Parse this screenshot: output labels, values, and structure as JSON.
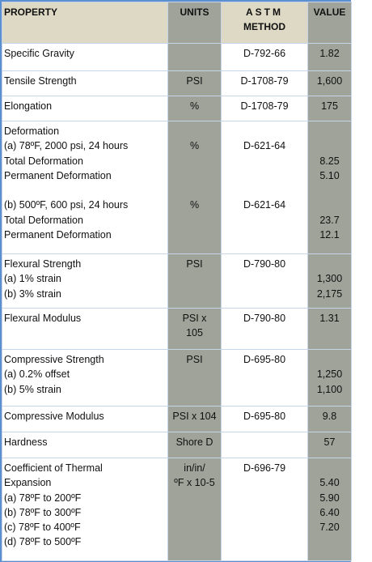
{
  "header": [
    {
      "property": "PROPERTY",
      "units": "UNITS",
      "astm": "ASTM",
      "value": "VALUE"
    },
    {
      "astm": "METHOD"
    }
  ],
  "rows": [
    {
      "groups": [
        [
          {
            "property": "Specific Gravity",
            "astm": "D-792-66",
            "value": "1.82"
          }
        ]
      ]
    },
    {
      "groups": [
        [
          {
            "property": "Tensile Strength",
            "units": "PSI",
            "astm": "D-1708-79",
            "value": "1,600"
          }
        ]
      ]
    },
    {
      "groups": [
        [
          {
            "property": "Elongation",
            "units": "%",
            "astm": "D-1708-79",
            "value": "175"
          }
        ]
      ]
    },
    {
      "groups": [
        [
          {
            "property": "Deformation"
          },
          {
            "property": "(a) 78ºF, 2000 psi, 24 hours",
            "units": "%",
            "astm": "D-621-64"
          },
          {
            "property": "Total Deformation",
            "value": "8.25"
          },
          {
            "property": "Permanent Deformation",
            "value": "5.10"
          }
        ],
        [
          {
            "property": "(b) 500ºF, 600 psi, 24 hours",
            "units": "%",
            "astm": "D-621-64"
          },
          {
            "property": "Total Deformation",
            "value": "23.7"
          },
          {
            "property": "Permanent Deformation",
            "value": "12.1"
          }
        ]
      ]
    },
    {
      "groups": [
        [
          {
            "property": "Flexural Strength",
            "units": "PSI",
            "astm": "D-790-80"
          },
          {
            "property": "(a) 1% strain",
            "value": "1,300"
          },
          {
            "property": "(b) 3% strain",
            "value": "2,175"
          }
        ]
      ]
    },
    {
      "groups": [
        [
          {
            "property": "Flexural Modulus",
            "units": "PSI x",
            "astm": "D-790-80",
            "value": "1.31"
          },
          {
            "units": "105"
          }
        ]
      ]
    },
    {
      "groups": [
        [
          {
            "property": "Compressive Strength",
            "units": "PSI",
            "astm": "D-695-80"
          },
          {
            "property": "(a) 0.2% offset",
            "value": "1,250"
          },
          {
            "property": "(b) 5% strain",
            "value": "1,100"
          }
        ]
      ]
    },
    {
      "groups": [
        [
          {
            "property": "Compressive Modulus",
            "units": "PSI x 104",
            "astm": "D-695-80",
            "value": "9.8"
          }
        ]
      ]
    },
    {
      "groups": [
        [
          {
            "property": "Hardness",
            "units": "Shore D",
            "value": "57"
          }
        ]
      ]
    },
    {
      "groups": [
        [
          {
            "property": "Coefficient of Thermal",
            "units": "in/in/",
            "astm": "D-696-79"
          },
          {
            "property": "Expansion",
            "units": "ºF x 10-5",
            "value": "5.40"
          },
          {
            "property": "(a) 78ºF to 200ºF",
            "value": "5.90"
          },
          {
            "property": "(b) 78ºF to 300ºF",
            "value": "6.40"
          },
          {
            "property": "(c) 78ºF to 400ºF",
            "value": "7.20"
          },
          {
            "property": "(d) 78ºF to 500ºF"
          }
        ]
      ]
    }
  ]
}
